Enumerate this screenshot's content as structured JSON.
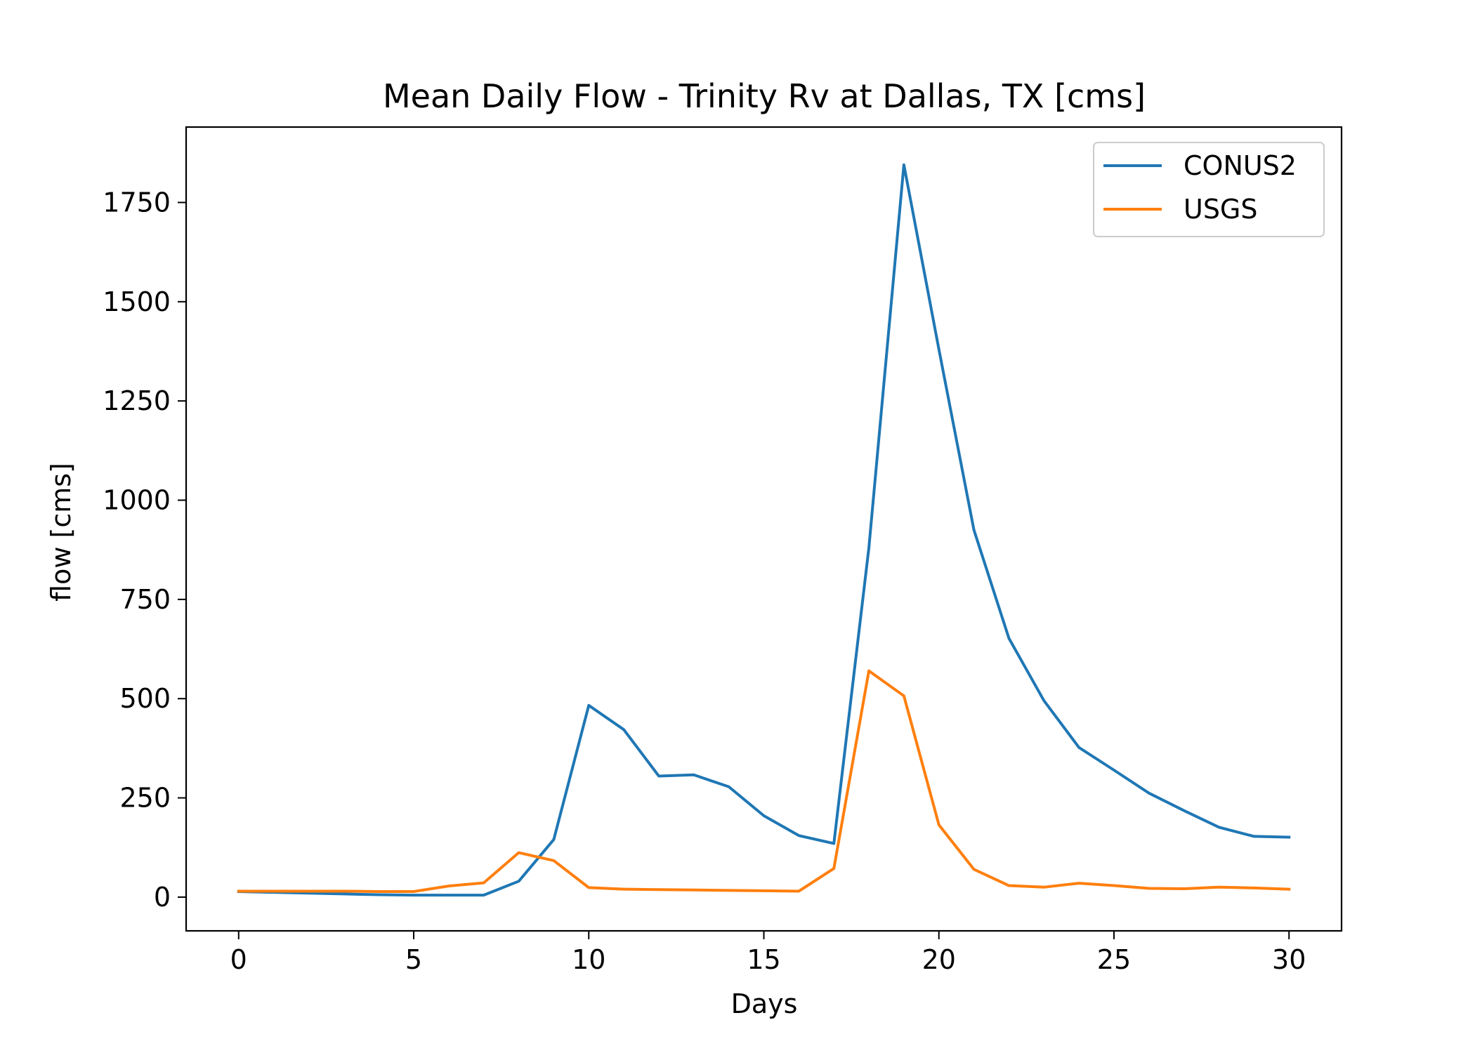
{
  "chart_data": {
    "type": "line",
    "title": "Mean Daily Flow - Trinity Rv at Dallas, TX [cms]",
    "xlabel": "Days",
    "ylabel": "flow [cms]",
    "xlim": [
      -1.5,
      31.5
    ],
    "ylim": [
      -85,
      1940
    ],
    "xticks": [
      0,
      5,
      10,
      15,
      20,
      25,
      30
    ],
    "yticks": [
      0,
      250,
      500,
      750,
      1000,
      1250,
      1500,
      1750
    ],
    "grid": false,
    "legend_position": "top-right",
    "x": [
      0,
      1,
      2,
      3,
      4,
      5,
      6,
      7,
      8,
      9,
      10,
      11,
      12,
      13,
      14,
      15,
      16,
      17,
      18,
      19,
      20,
      21,
      22,
      23,
      24,
      25,
      26,
      27,
      28,
      29,
      30
    ],
    "series": [
      {
        "name": "CONUS2",
        "color": "#1f77b4",
        "values": [
          14,
          12,
          10,
          8,
          6,
          5,
          5,
          5,
          40,
          145,
          483,
          422,
          305,
          308,
          278,
          205,
          155,
          135,
          880,
          1845,
          1380,
          925,
          652,
          495,
          377,
          320,
          262,
          218,
          176,
          153,
          151
        ]
      },
      {
        "name": "USGS",
        "color": "#ff7f0e",
        "values": [
          15,
          15,
          15,
          15,
          14,
          14,
          28,
          36,
          112,
          92,
          24,
          20,
          19,
          18,
          17,
          16,
          15,
          72,
          570,
          507,
          182,
          70,
          29,
          25,
          35,
          29,
          22,
          21,
          25,
          23,
          20
        ]
      }
    ]
  }
}
